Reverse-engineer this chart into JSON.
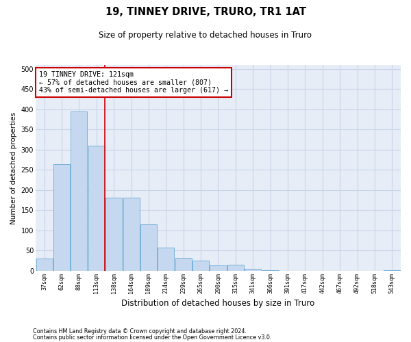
{
  "title": "19, TINNEY DRIVE, TRURO, TR1 1AT",
  "subtitle": "Size of property relative to detached houses in Truro",
  "xlabel": "Distribution of detached houses by size in Truro",
  "ylabel": "Number of detached properties",
  "footnote1": "Contains HM Land Registry data © Crown copyright and database right 2024.",
  "footnote2": "Contains public sector information licensed under the Open Government Licence v3.0.",
  "annotation_line1": "19 TINNEY DRIVE: 121sqm",
  "annotation_line2": "← 57% of detached houses are smaller (807)",
  "annotation_line3": "43% of semi-detached houses are larger (617) →",
  "bar_color": "#c5d8ef",
  "bar_edge_color": "#6aaad4",
  "vline_color": "#cc0000",
  "vline_x": 3.5,
  "categories": [
    "37sqm",
    "62sqm",
    "88sqm",
    "113sqm",
    "138sqm",
    "164sqm",
    "189sqm",
    "214sqm",
    "239sqm",
    "265sqm",
    "290sqm",
    "315sqm",
    "341sqm",
    "366sqm",
    "391sqm",
    "417sqm",
    "442sqm",
    "467sqm",
    "492sqm",
    "518sqm",
    "543sqm"
  ],
  "values": [
    30,
    265,
    395,
    310,
    181,
    181,
    115,
    58,
    32,
    26,
    13,
    15,
    5,
    1,
    0,
    0,
    0,
    0,
    0,
    0,
    1
  ],
  "ylim": [
    0,
    510
  ],
  "yticks": [
    0,
    50,
    100,
    150,
    200,
    250,
    300,
    350,
    400,
    450,
    500
  ],
  "grid_color": "#c8d4e8",
  "background_color": "#e6edf7"
}
